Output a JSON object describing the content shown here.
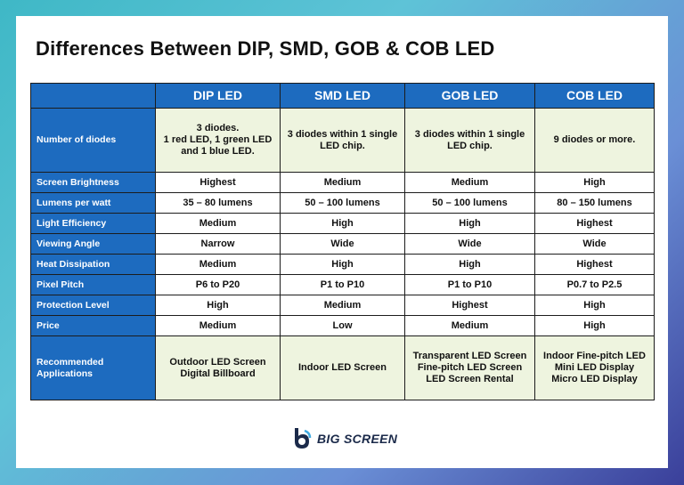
{
  "title": "Differences Between DIP, SMD, GOB & COB LED",
  "columns": [
    "",
    "DIP LED",
    "SMD LED",
    "GOB LED",
    "COB LED"
  ],
  "rows": [
    {
      "label": "Number of diodes",
      "values": [
        "3 diodes.\n1 red LED, 1 green LED\nand 1 blue LED.",
        "3 diodes within 1 single\nLED chip.",
        "3 diodes within 1 single\nLED chip.",
        "9 diodes or more."
      ]
    },
    {
      "label": "Screen Brightness",
      "values": [
        "Highest",
        "Medium",
        "Medium",
        "High"
      ]
    },
    {
      "label": "Lumens per watt",
      "values": [
        "35 – 80 lumens",
        "50 – 100 lumens",
        "50 – 100 lumens",
        "80 – 150 lumens"
      ]
    },
    {
      "label": "Light Efficiency",
      "values": [
        "Medium",
        "High",
        "High",
        "Highest"
      ]
    },
    {
      "label": "Viewing Angle",
      "values": [
        "Narrow",
        "Wide",
        "Wide",
        "Wide"
      ]
    },
    {
      "label": "Heat Dissipation",
      "values": [
        "Medium",
        "High",
        "High",
        "Highest"
      ]
    },
    {
      "label": "Pixel Pitch",
      "values": [
        "P6 to P20",
        "P1 to P10",
        "P1 to P10",
        "P0.7 to P2.5"
      ]
    },
    {
      "label": "Protection Level",
      "values": [
        "High",
        "Medium",
        "Highest",
        "High"
      ]
    },
    {
      "label": "Price",
      "values": [
        "Medium",
        "Low",
        "Medium",
        "High"
      ]
    },
    {
      "label": "Recommended\nApplications",
      "values": [
        "Outdoor LED Screen\nDigital Billboard",
        "Indoor LED Screen",
        "Transparent LED Screen\nFine-pitch LED Screen\nLED Screen Rental",
        "Indoor Fine-pitch LED\nMini LED Display\nMicro LED Display"
      ]
    }
  ],
  "logo": {
    "text": "BIG SCREEN",
    "icon": "big-screen-logo-icon"
  },
  "colors": {
    "header": "#1d6bbf",
    "highlight": "#eef4df",
    "text": "#111111"
  }
}
